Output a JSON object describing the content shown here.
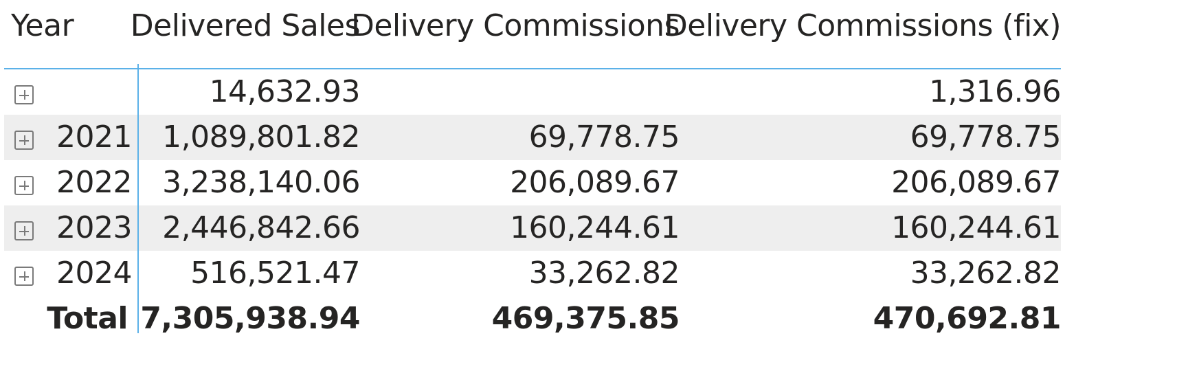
{
  "header": {
    "year": "Year",
    "delivered_sales": "Delivered Sales",
    "delivery_commissions": "Delivery Commissions",
    "delivery_commissions_fix": "Delivery Commissions (fix)"
  },
  "rows": [
    {
      "year": "",
      "sales": "14,632.93",
      "commissions": "",
      "commissions_fix": "1,316.96"
    },
    {
      "year": "2021",
      "sales": "1,089,801.82",
      "commissions": "69,778.75",
      "commissions_fix": "69,778.75"
    },
    {
      "year": "2022",
      "sales": "3,238,140.06",
      "commissions": "206,089.67",
      "commissions_fix": "206,089.67"
    },
    {
      "year": "2023",
      "sales": "2,446,842.66",
      "commissions": "160,244.61",
      "commissions_fix": "160,244.61"
    },
    {
      "year": "2024",
      "sales": "516,521.47",
      "commissions": "33,262.82",
      "commissions_fix": "33,262.82"
    }
  ],
  "total": {
    "label": "Total",
    "sales": "7,305,938.94",
    "commissions": "469,375.85",
    "commissions_fix": "470,692.81"
  },
  "colors": {
    "accent": "#5bb1e8",
    "shaded_row": "#eeeeee",
    "text": "#252423"
  },
  "icons": {
    "expand": "plus-box-icon"
  }
}
